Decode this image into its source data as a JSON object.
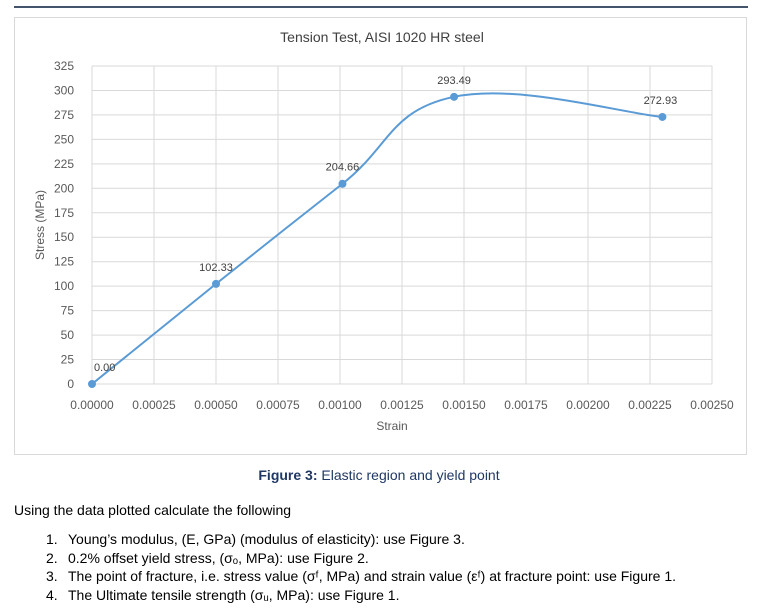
{
  "chart_data": {
    "type": "line",
    "title": "Tension Test, AISI 1020 HR steel",
    "xlabel": "Strain",
    "ylabel": "Stress (MPa)",
    "xlim": [
      0,
      0.0025
    ],
    "ylim": [
      0,
      325
    ],
    "x_ticks": [
      "0.00000",
      "0.00025",
      "0.00050",
      "0.00075",
      "0.00100",
      "0.00125",
      "0.00150",
      "0.00175",
      "0.00200",
      "0.00225",
      "0.00250"
    ],
    "y_ticks": [
      "0",
      "25",
      "50",
      "75",
      "100",
      "125",
      "150",
      "175",
      "200",
      "225",
      "250",
      "275",
      "300",
      "325"
    ],
    "grid": true,
    "legend": "none",
    "color": "#5b9bd5",
    "series": [
      {
        "x": [
          0,
          0.0005,
          0.00101,
          0.00146,
          0.0023
        ],
        "y": [
          0,
          102.33,
          204.66,
          293.49,
          272.93
        ],
        "labels": [
          "0.00",
          "102.33",
          "204.66",
          "293.49",
          "272.93"
        ]
      }
    ]
  },
  "caption": {
    "bold": "Figure 3:",
    "text": " Elastic region and yield point"
  },
  "intro": "Using the data plotted calculate the following",
  "questions": [
    {
      "num": "1.",
      "text": "Young’s modulus, (E, GPa) (modulus of elasticity): use Figure 3."
    },
    {
      "num": "2.",
      "text": "0.2% offset yield stress, (σₒ, MPa): use Figure 2."
    },
    {
      "num": "3.",
      "text": "The point of fracture, i.e. stress value (σᶠ, MPa) and strain value (εᶠ) at fracture point: use Figure 1."
    },
    {
      "num": "4.",
      "text": "The Ultimate tensile strength (σᵤ, MPa): use Figure 1."
    }
  ]
}
